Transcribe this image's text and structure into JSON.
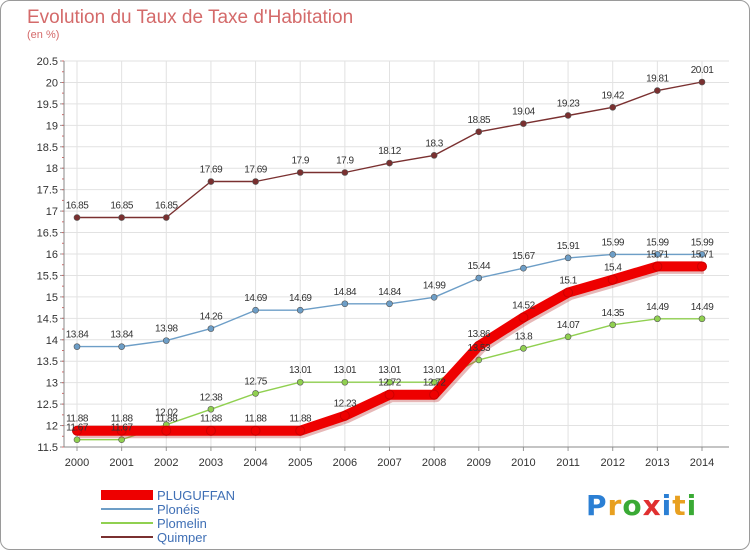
{
  "title": "Evolution du Taux de Taxe d'Habitation",
  "subtitle": "(en %)",
  "logo": {
    "letters": [
      "P",
      "r",
      "o",
      "x",
      "i",
      "t",
      "i"
    ],
    "colors": [
      "#2b7fd4",
      "#e8a020",
      "#3aaa35",
      "#e03030",
      "#2b7fd4",
      "#e8a020",
      "#3aaa35"
    ]
  },
  "chart_data": {
    "type": "line",
    "title": "Evolution du Taux de Taxe d'Habitation",
    "ylabel": "(en %)",
    "xlabel": "",
    "x": [
      "2000",
      "2001",
      "2002",
      "2003",
      "2004",
      "2005",
      "2006",
      "2007",
      "2008",
      "2009",
      "2010",
      "2011",
      "2012",
      "2013",
      "2014"
    ],
    "ylim": [
      11.5,
      20.5
    ],
    "yticks": [
      "11.5",
      "12",
      "12.5",
      "13",
      "13.5",
      "14",
      "14.5",
      "15",
      "15.5",
      "16",
      "16.5",
      "17",
      "17.5",
      "18",
      "18.5",
      "19",
      "19.5",
      "20",
      "20.5"
    ],
    "grid": true,
    "legend": "bottom-left",
    "series": [
      {
        "name": "PLUGUFFAN",
        "color": "#ee0000",
        "values": [
          11.88,
          11.88,
          11.88,
          11.88,
          11.88,
          11.88,
          12.23,
          12.72,
          12.72,
          13.86,
          14.52,
          15.1,
          15.4,
          15.71,
          15.71
        ],
        "labels": [
          "11.88",
          "11.88",
          "11.88",
          "11.88",
          "11.88",
          "11.88",
          "12.23",
          "12.72",
          "12.72",
          "13.86",
          "14.52",
          "15.1",
          "15.4",
          "15.71",
          "15.71"
        ]
      },
      {
        "name": "Plonéis",
        "color": "#6d9ec7",
        "values": [
          13.84,
          13.84,
          13.98,
          14.26,
          14.69,
          14.69,
          14.84,
          14.84,
          14.99,
          15.44,
          15.67,
          15.91,
          15.99,
          15.99,
          15.99
        ],
        "labels": [
          "13.84",
          "13.84",
          "13.98",
          "14.26",
          "14.69",
          "14.69",
          "14.84",
          "14.84",
          "14.99",
          "15.44",
          "15.67",
          "15.91",
          "15.99",
          "15.99",
          "15.99"
        ]
      },
      {
        "name": "Plomelin",
        "color": "#90d050",
        "values": [
          11.67,
          11.67,
          12.02,
          12.38,
          12.75,
          13.01,
          13.01,
          13.01,
          13.01,
          13.53,
          13.8,
          14.07,
          14.35,
          14.49,
          14.49
        ],
        "labels": [
          "11.67",
          "11.67",
          "12.02",
          "12.38",
          "12.75",
          "13.01",
          "13.01",
          "13.01",
          "13.01",
          "13.53",
          "13.8",
          "14.07",
          "14.35",
          "14.49",
          "14.49"
        ]
      },
      {
        "name": "Quimper",
        "color": "#7a3030",
        "values": [
          16.85,
          16.85,
          16.85,
          17.69,
          17.69,
          17.9,
          17.9,
          18.12,
          18.3,
          18.85,
          19.04,
          19.23,
          19.42,
          19.81,
          20.01
        ],
        "labels": [
          "16.85",
          "16.85",
          "16.85",
          "17.69",
          "17.69",
          "17.9",
          "17.9",
          "18.12",
          "18.3",
          "18.85",
          "19.04",
          "19.23",
          "19.42",
          "19.81",
          "20.01"
        ]
      }
    ]
  }
}
